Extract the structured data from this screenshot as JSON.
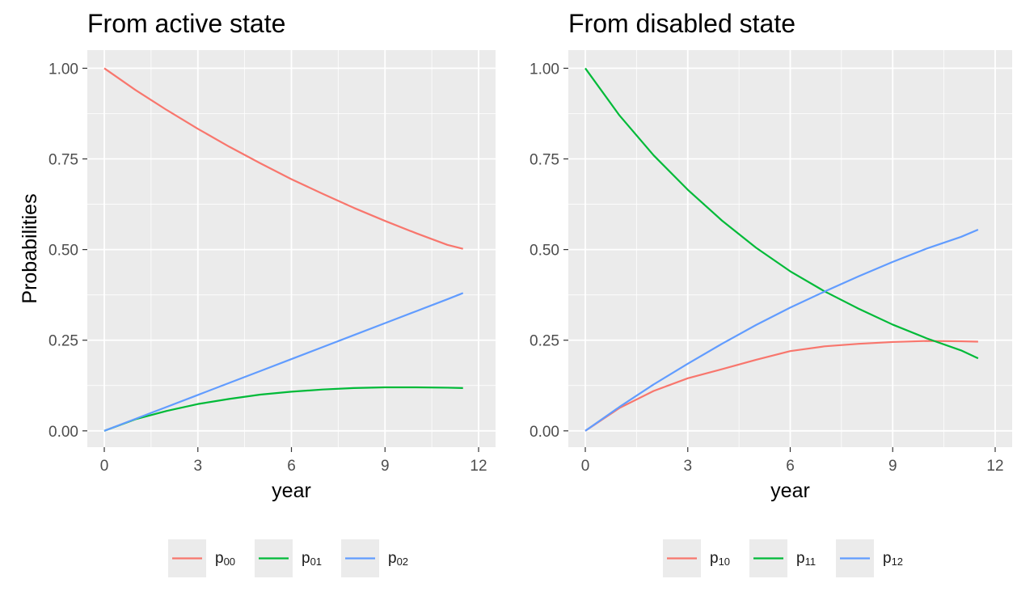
{
  "chart_data": [
    {
      "type": "line",
      "title": "From active state",
      "xlabel": "year",
      "ylabel": "Probabilities",
      "xlim": [
        0,
        12
      ],
      "ylim": [
        0,
        1
      ],
      "xticks": [
        0,
        3,
        6,
        9,
        12
      ],
      "xtick_labels": [
        "0",
        "3",
        "6",
        "9",
        "12"
      ],
      "yticks": [
        0,
        0.25,
        0.5,
        0.75,
        1
      ],
      "ytick_labels": [
        "0.00",
        "0.25",
        "0.50",
        "0.75",
        "1.00"
      ],
      "grid": true,
      "legend_position": "bottom",
      "series": [
        {
          "name": "p",
          "subscript": "00",
          "color": "#F8766D",
          "x": [
            0,
            1,
            2,
            3,
            4,
            5,
            6,
            7,
            8,
            9,
            10,
            11,
            11.5
          ],
          "y": [
            1.0,
            0.94,
            0.885,
            0.833,
            0.784,
            0.738,
            0.694,
            0.654,
            0.615,
            0.579,
            0.545,
            0.513,
            0.502
          ]
        },
        {
          "name": "p",
          "subscript": "01",
          "color": "#00BA38",
          "x": [
            0,
            1,
            2,
            3,
            4,
            5,
            6,
            7,
            8,
            9,
            10,
            11,
            11.5
          ],
          "y": [
            0.0,
            0.032,
            0.055,
            0.074,
            0.088,
            0.1,
            0.108,
            0.114,
            0.118,
            0.12,
            0.12,
            0.119,
            0.118
          ]
        },
        {
          "name": "p",
          "subscript": "02",
          "color": "#619CFF",
          "x": [
            0,
            1,
            2,
            3,
            4,
            5,
            6,
            7,
            8,
            9,
            10,
            11,
            11.5
          ],
          "y": [
            0.0,
            0.033,
            0.066,
            0.099,
            0.132,
            0.165,
            0.198,
            0.231,
            0.264,
            0.297,
            0.33,
            0.363,
            0.38
          ]
        }
      ]
    },
    {
      "type": "line",
      "title": "From disabled state",
      "xlabel": "year",
      "ylabel": "",
      "xlim": [
        0,
        12
      ],
      "ylim": [
        0,
        1
      ],
      "xticks": [
        0,
        3,
        6,
        9,
        12
      ],
      "xtick_labels": [
        "0",
        "3",
        "6",
        "9",
        "12"
      ],
      "yticks": [
        0,
        0.25,
        0.5,
        0.75,
        1
      ],
      "ytick_labels": [
        "0.00",
        "0.25",
        "0.50",
        "0.75",
        "1.00"
      ],
      "grid": true,
      "legend_position": "bottom",
      "series": [
        {
          "name": "p",
          "subscript": "10",
          "color": "#F8766D",
          "x": [
            0,
            1,
            2,
            3,
            4,
            5,
            6,
            7,
            8,
            9,
            10,
            11,
            11.5
          ],
          "y": [
            0.0,
            0.063,
            0.11,
            0.145,
            0.17,
            0.196,
            0.22,
            0.233,
            0.24,
            0.245,
            0.248,
            0.247,
            0.246
          ]
        },
        {
          "name": "p",
          "subscript": "11",
          "color": "#00BA38",
          "x": [
            0,
            1,
            2,
            3,
            4,
            5,
            6,
            7,
            8,
            9,
            10,
            11,
            11.5
          ],
          "y": [
            1.0,
            0.87,
            0.76,
            0.665,
            0.58,
            0.505,
            0.44,
            0.385,
            0.337,
            0.293,
            0.255,
            0.222,
            0.2
          ]
        },
        {
          "name": "p",
          "subscript": "12",
          "color": "#619CFF",
          "x": [
            0,
            1,
            2,
            3,
            4,
            5,
            6,
            7,
            8,
            9,
            10,
            11,
            11.5
          ],
          "y": [
            0.0,
            0.066,
            0.128,
            0.185,
            0.24,
            0.292,
            0.34,
            0.384,
            0.426,
            0.466,
            0.503,
            0.535,
            0.555
          ]
        }
      ]
    }
  ]
}
